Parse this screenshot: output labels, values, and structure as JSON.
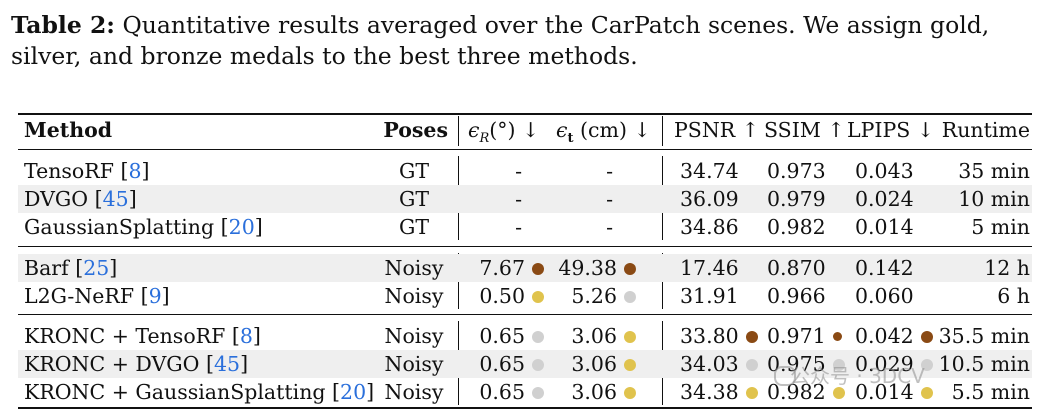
{
  "caption": {
    "label": "Table 2:",
    "text": " Quantitative results averaged over the CarPatch scenes. We assign gold, silver, and bronze medals to the best three methods."
  },
  "headers": {
    "method": "Method",
    "poses": "Poses",
    "eps_r": "ϵ",
    "eps_r_sub": "R",
    "eps_r_unit": "(°) ↓",
    "eps_t": "ϵ",
    "eps_t_sub": "t",
    "eps_t_unit": "(cm) ↓",
    "psnr": "PSNR ↑",
    "ssim": "SSIM ↑",
    "lpips": "LPIPS ↓",
    "runtime": "Runtime"
  },
  "colors": {
    "gold": "#e0c34d",
    "silver": "#d0d0d0",
    "bronze": "#8a4a14",
    "ref": "#2a6fdb"
  },
  "rows": [
    {
      "method": "TensoRF ",
      "ref": "8",
      "poses": "GT",
      "er": "-",
      "et": "-",
      "psnr": "34.74",
      "ssim": "0.973",
      "lpips": "0.043",
      "runtime": "35 min",
      "medals": {}
    },
    {
      "method": "DVGO ",
      "ref": "45",
      "poses": "GT",
      "er": "-",
      "et": "-",
      "psnr": "36.09",
      "ssim": "0.979",
      "lpips": "0.024",
      "runtime": "10 min",
      "medals": {}
    },
    {
      "method": "GaussianSplatting ",
      "ref": "20",
      "poses": "GT",
      "er": "-",
      "et": "-",
      "psnr": "34.86",
      "ssim": "0.982",
      "lpips": "0.014",
      "runtime": "5 min",
      "medals": {}
    },
    {
      "method": "Barf ",
      "ref": "25",
      "poses": "Noisy",
      "er": "7.67",
      "et": "49.38",
      "psnr": "17.46",
      "ssim": "0.870",
      "lpips": "0.142",
      "runtime": "12 h",
      "medals": {
        "er": "bronze",
        "et": "bronze"
      }
    },
    {
      "method": "L2G-NeRF ",
      "ref": "9",
      "poses": "Noisy",
      "er": "0.50",
      "et": "5.26",
      "psnr": "31.91",
      "ssim": "0.966",
      "lpips": "0.060",
      "runtime": "6 h",
      "medals": {
        "er": "gold",
        "et": "silver"
      }
    },
    {
      "method": "KRONC + TensoRF ",
      "ref": "8",
      "poses": "Noisy",
      "er": "0.65",
      "et": "3.06",
      "psnr": "33.80",
      "ssim": "0.971",
      "lpips": "0.042",
      "runtime": "35.5 min",
      "medals": {
        "er": "silver",
        "et": "gold",
        "psnr": "bronze",
        "ssim": "bronze",
        "lpips": "bronze"
      }
    },
    {
      "method": "KRONC + DVGO ",
      "ref": "45",
      "poses": "Noisy",
      "er": "0.65",
      "et": "3.06",
      "psnr": "34.03",
      "ssim": "0.975",
      "lpips": "0.029",
      "runtime": "10.5 min",
      "medals": {
        "er": "silver",
        "et": "gold",
        "psnr": "silver",
        "ssim": "silver",
        "lpips": "silver"
      }
    },
    {
      "method": "KRONC + GaussianSplatting ",
      "ref": "20",
      "poses": "Noisy",
      "er": "0.65",
      "et": "3.06",
      "psnr": "34.38",
      "ssim": "0.982",
      "lpips": "0.014",
      "runtime": "5.5 min",
      "medals": {
        "er": "silver",
        "et": "gold",
        "psnr": "gold",
        "ssim": "gold",
        "lpips": "gold"
      }
    }
  ],
  "watermark": "公众号 · 3DCV"
}
